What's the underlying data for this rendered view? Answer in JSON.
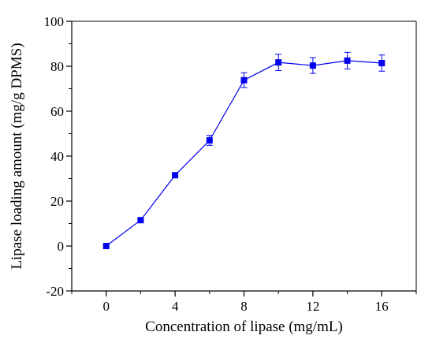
{
  "chart_data": {
    "type": "line",
    "xlabel": "Concentration of lipase (mg/mL)",
    "ylabel": "Lipase loading amount (mg/g DPMS)",
    "xlim": [
      -2,
      18
    ],
    "ylim": [
      -20,
      100
    ],
    "x_ticks": [
      0,
      4,
      8,
      12,
      16
    ],
    "y_ticks": [
      -20,
      0,
      20,
      40,
      60,
      80,
      100
    ],
    "x_minor_step": 2,
    "y_minor_step": 10,
    "grid": false,
    "series": [
      {
        "color": "#0000ee",
        "marker": "square",
        "x": [
          0,
          2,
          4,
          6,
          8,
          10,
          12,
          14,
          16
        ],
        "y": [
          0,
          11.5,
          31.5,
          47,
          73.8,
          81.7,
          80.3,
          82.5,
          81.4
        ],
        "error": [
          0,
          0,
          0,
          2.2,
          3.3,
          3.6,
          3.5,
          3.7,
          3.6
        ]
      }
    ]
  }
}
